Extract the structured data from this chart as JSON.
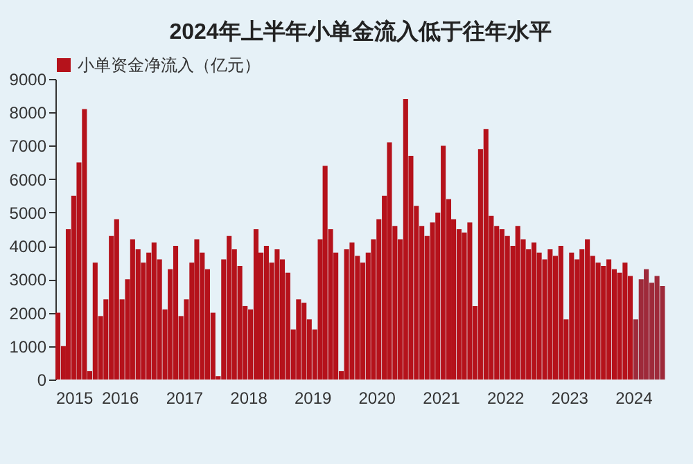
{
  "chart_data": {
    "type": "bar",
    "title": "2024年上半年小单金流入低于往年水平",
    "legend": "top",
    "x": [
      "2015-01",
      "2015-02",
      "2015-03",
      "2015-04",
      "2015-05",
      "2015-06",
      "2015-07",
      "2015-08",
      "2015-09",
      "2015-10",
      "2015-11",
      "2015-12",
      "2016-01",
      "2016-02",
      "2016-03",
      "2016-04",
      "2016-05",
      "2016-06",
      "2016-07",
      "2016-08",
      "2016-09",
      "2016-10",
      "2016-11",
      "2016-12",
      "2017-01",
      "2017-02",
      "2017-03",
      "2017-04",
      "2017-05",
      "2017-06",
      "2017-07",
      "2017-08",
      "2017-09",
      "2017-10",
      "2017-11",
      "2017-12",
      "2018-01",
      "2018-02",
      "2018-03",
      "2018-04",
      "2018-05",
      "2018-06",
      "2018-07",
      "2018-08",
      "2018-09",
      "2018-10",
      "2018-11",
      "2018-12",
      "2019-01",
      "2019-02",
      "2019-03",
      "2019-04",
      "2019-05",
      "2019-06",
      "2019-07",
      "2019-08",
      "2019-09",
      "2019-10",
      "2019-11",
      "2019-12",
      "2020-01",
      "2020-02",
      "2020-03",
      "2020-04",
      "2020-05",
      "2020-06",
      "2020-07",
      "2020-08",
      "2020-09",
      "2020-10",
      "2020-11",
      "2020-12",
      "2021-01",
      "2021-02",
      "2021-03",
      "2021-04",
      "2021-05",
      "2021-06",
      "2021-07",
      "2021-08",
      "2021-09",
      "2021-10",
      "2021-11",
      "2021-12",
      "2022-01",
      "2022-02",
      "2022-03",
      "2022-04",
      "2022-05",
      "2022-06",
      "2022-07",
      "2022-08",
      "2022-09",
      "2022-10",
      "2022-11",
      "2022-12",
      "2023-01",
      "2023-02",
      "2023-03",
      "2023-04",
      "2023-05",
      "2023-06",
      "2023-07",
      "2023-08",
      "2023-09",
      "2023-10",
      "2023-11",
      "2023-12",
      "2024-01",
      "2024-02",
      "2024-03",
      "2024-04",
      "2024-05",
      "2024-06"
    ],
    "series": [
      {
        "name": "小单资金净流入（亿元）",
        "color": "#b5121b",
        "values": [
          2000,
          1000,
          4500,
          5500,
          6500,
          8100,
          250,
          3500,
          1900,
          2400,
          4300,
          4800,
          2400,
          3000,
          4200,
          3900,
          3500,
          3800,
          4100,
          3600,
          2100,
          3300,
          4000,
          1900,
          2400,
          3500,
          4200,
          3800,
          3300,
          2000,
          100,
          3600,
          4300,
          3900,
          3400,
          2200,
          2100,
          4500,
          3800,
          4000,
          3500,
          3900,
          3600,
          3200,
          1500,
          2400,
          2300,
          1800,
          1500,
          4200,
          6400,
          4500,
          3800,
          250,
          3900,
          4100,
          3700,
          3500,
          3800,
          4200,
          4800,
          5500,
          7100,
          4600,
          4200,
          8400,
          6700,
          5200,
          4600,
          4300,
          4700,
          5000,
          7000,
          5400,
          4800,
          4500,
          4400,
          4700,
          2200,
          6900,
          7500,
          4900,
          4600,
          4500,
          4300,
          4000,
          4600,
          4200,
          3900,
          4100,
          3800,
          3600,
          3900,
          3700,
          4000,
          1800,
          3800,
          3600,
          3900,
          4200,
          3700,
          3500,
          3400,
          3600,
          3300,
          3200,
          3500,
          3100,
          1800,
          3000,
          3300,
          2900,
          3100,
          2800
        ],
        "colors": [
          "#b5121b",
          "#b5121b",
          "#b5121b",
          "#b5121b",
          "#b5121b",
          "#b5121b",
          "#b5121b",
          "#b5121b",
          "#b5121b",
          "#b5121b",
          "#b5121b",
          "#b5121b",
          "#b5121b",
          "#b5121b",
          "#b5121b",
          "#b5121b",
          "#b5121b",
          "#b5121b",
          "#b5121b",
          "#b5121b",
          "#b5121b",
          "#b5121b",
          "#b5121b",
          "#b5121b",
          "#b5121b",
          "#b5121b",
          "#b5121b",
          "#b5121b",
          "#b5121b",
          "#b5121b",
          "#b5121b",
          "#b5121b",
          "#b5121b",
          "#b5121b",
          "#b5121b",
          "#b5121b",
          "#b5121b",
          "#b5121b",
          "#b5121b",
          "#b5121b",
          "#b5121b",
          "#b5121b",
          "#b5121b",
          "#b5121b",
          "#b5121b",
          "#b5121b",
          "#b5121b",
          "#b5121b",
          "#b5121b",
          "#b5121b",
          "#b5121b",
          "#b5121b",
          "#b5121b",
          "#b5121b",
          "#b5121b",
          "#b5121b",
          "#b5121b",
          "#b5121b",
          "#b5121b",
          "#b5121b",
          "#b5121b",
          "#b5121b",
          "#b5121b",
          "#b5121b",
          "#b5121b",
          "#b5121b",
          "#b5121b",
          "#b5121b",
          "#b5121b",
          "#b5121b",
          "#b5121b",
          "#b5121b",
          "#b5121b",
          "#b5121b",
          "#b5121b",
          "#b5121b",
          "#b5121b",
          "#b5121b",
          "#b5121b",
          "#b5121b",
          "#b5121b",
          "#b5121b",
          "#b5121b",
          "#b5121b",
          "#b5121b",
          "#b5121b",
          "#b5121b",
          "#b5121b",
          "#b5121b",
          "#b5121b",
          "#b5121b",
          "#b5121b",
          "#b5121b",
          "#b5121b",
          "#b5121b",
          "#b5121b",
          "#b5121b",
          "#b5121b",
          "#b5121b",
          "#b5121b",
          "#b5121b",
          "#b5121b",
          "#b5121b",
          "#b5121b",
          "#b5121b",
          "#b5121b",
          "#b5121b",
          "#b5121b",
          "#9e2a3a",
          "#9e2a3a",
          "#9e2a3a",
          "#9e2a3a",
          "#9e2a3a",
          "#9e2a3a"
        ]
      }
    ],
    "xlim": [
      "2015-01",
      "2024-07"
    ],
    "xticks": [
      "2015",
      "2016",
      "2017",
      "2018",
      "2019",
      "2020",
      "2021",
      "2022",
      "2023",
      "2024"
    ],
    "ylim": [
      0,
      9000
    ],
    "yticks": [
      0,
      1000,
      2000,
      3000,
      4000,
      5000,
      6000,
      7000,
      8000,
      9000
    ],
    "grid": false
  }
}
